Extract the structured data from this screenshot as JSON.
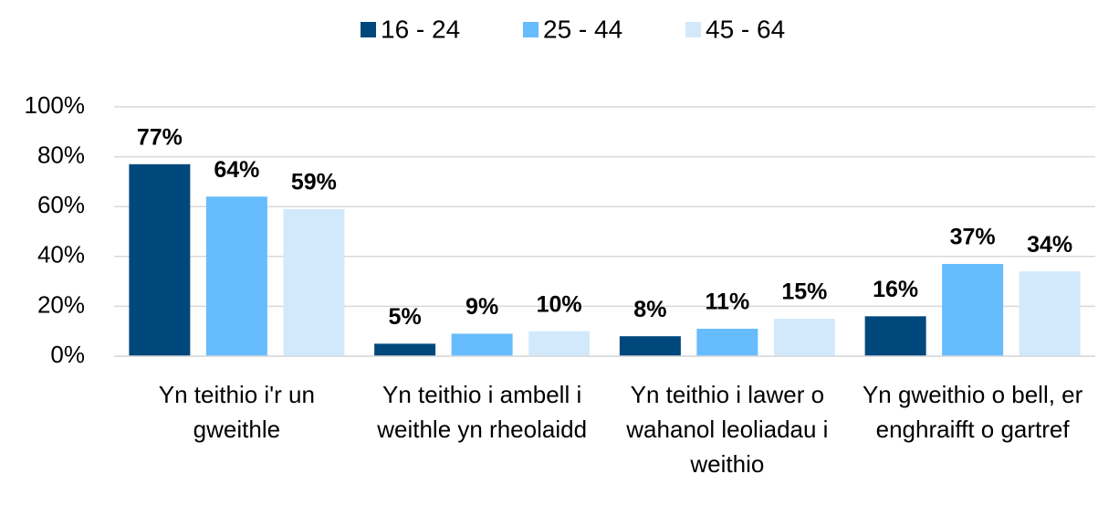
{
  "chart_data": {
    "type": "bar",
    "categories": [
      "Yn teithio i'r un gweithle",
      "Yn teithio i ambell i weithle yn rheolaidd",
      "Yn teithio i lawer o wahanol leoliadau i weithio",
      "Yn gweithio o bell, er enghraifft o gartref"
    ],
    "series": [
      {
        "name": "16 - 24",
        "color": "#00487c",
        "values": [
          77,
          5,
          8,
          16
        ],
        "value_labels": [
          "77%",
          "5%",
          "8%",
          "16%"
        ]
      },
      {
        "name": "25 - 44",
        "color": "#66bcfc",
        "values": [
          64,
          9,
          11,
          37
        ],
        "value_labels": [
          "64%",
          "9%",
          "11%",
          "37%"
        ]
      },
      {
        "name": "45 - 64",
        "color": "#d2e9fc",
        "values": [
          59,
          10,
          15,
          34
        ],
        "value_labels": [
          "59%",
          "10%",
          "15%",
          "34%"
        ]
      }
    ],
    "ylim": [
      0,
      100
    ],
    "yticks": [
      {
        "value": 0,
        "label": "0%"
      },
      {
        "value": 20,
        "label": "20%"
      },
      {
        "value": 40,
        "label": "40%"
      },
      {
        "value": 60,
        "label": "60%"
      },
      {
        "value": 80,
        "label": "80%"
      },
      {
        "value": 100,
        "label": "100%"
      }
    ],
    "grid": true,
    "legend": "top"
  }
}
